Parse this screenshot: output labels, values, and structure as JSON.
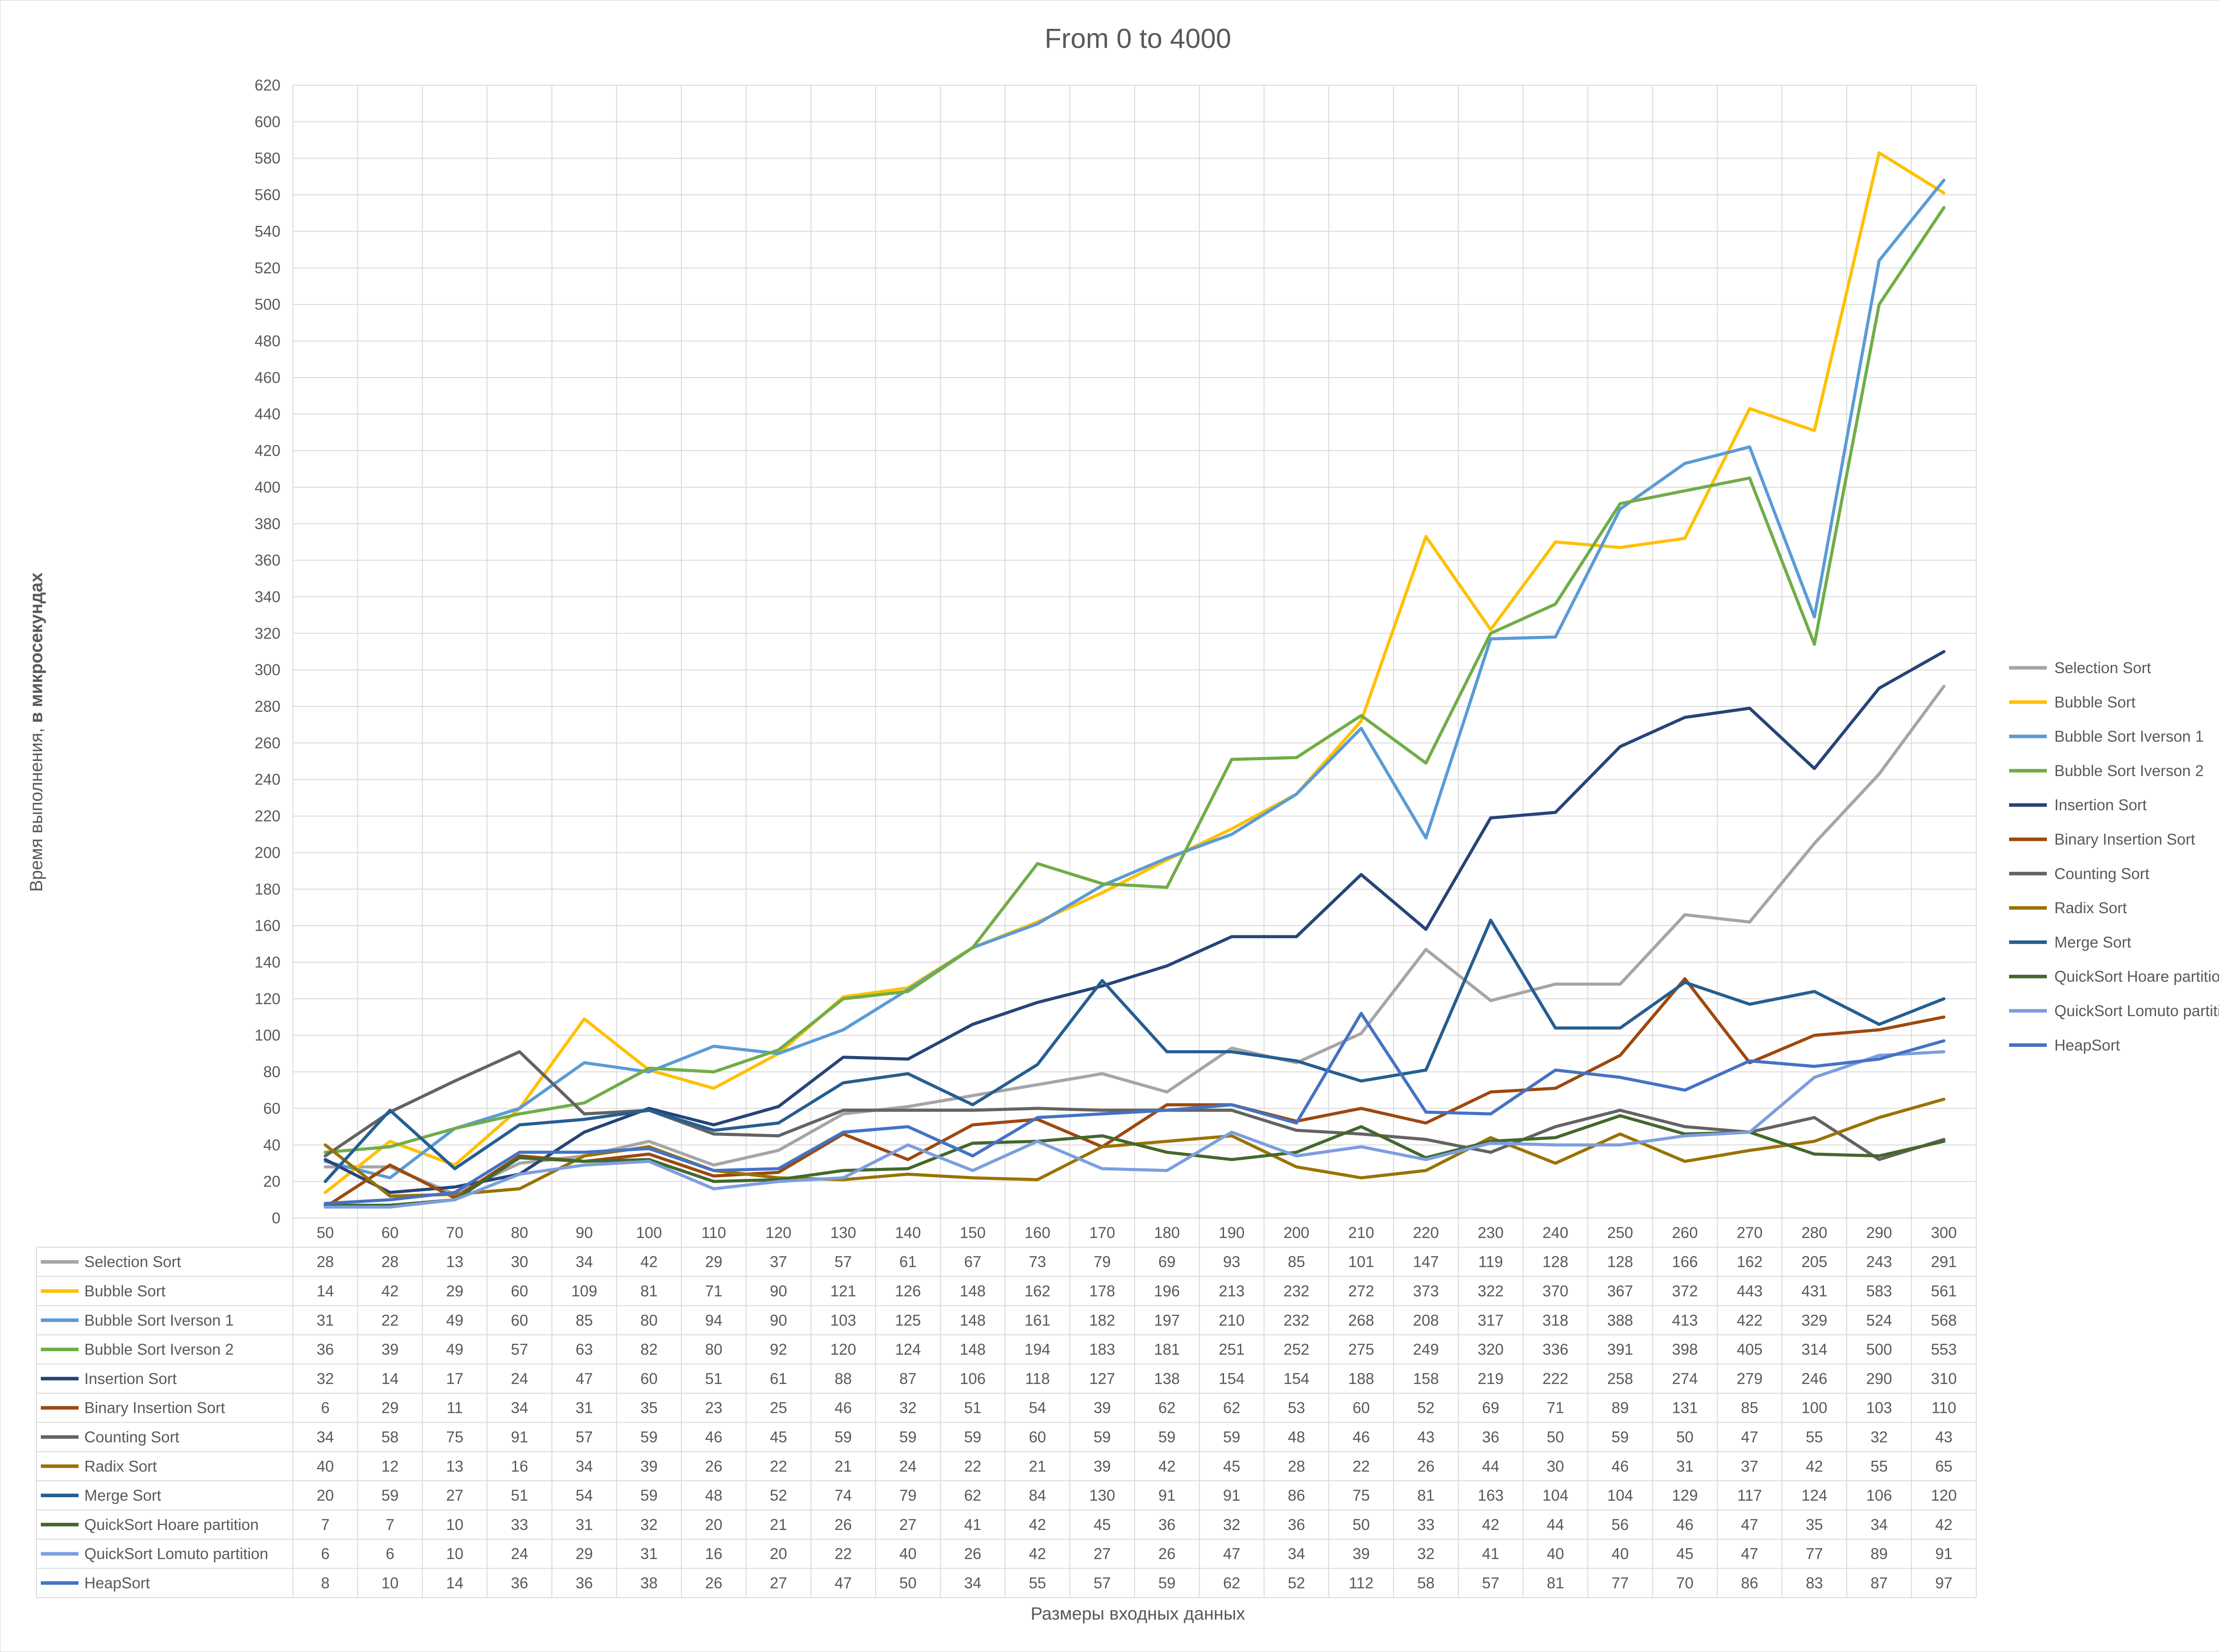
{
  "chart_data": {
    "type": "line",
    "title": "From 0 to 4000",
    "xlabel": "Размеры  входных данных",
    "ylabel_normal": "Время выполнения, ",
    "ylabel_bold": "в микросекундах",
    "ylim": [
      0,
      620
    ],
    "ytick_step": 20,
    "grid": "horizontal and vertical",
    "legend_position": "right",
    "data_table": true,
    "categories": [
      "50",
      "60",
      "70",
      "80",
      "90",
      "100",
      "110",
      "120",
      "130",
      "140",
      "150",
      "160",
      "170",
      "180",
      "190",
      "200",
      "210",
      "220",
      "230",
      "240",
      "250",
      "260",
      "270",
      "280",
      "290",
      "300"
    ],
    "series": [
      {
        "name": "Selection Sort",
        "color": "#a5a5a5",
        "values": [
          28,
          28,
          13,
          30,
          34,
          42,
          29,
          37,
          57,
          61,
          67,
          73,
          79,
          69,
          93,
          85,
          101,
          147,
          119,
          128,
          128,
          166,
          162,
          205,
          243,
          291
        ]
      },
      {
        "name": "Bubble Sort",
        "color": "#ffc000",
        "values": [
          14,
          42,
          29,
          60,
          109,
          81,
          71,
          90,
          121,
          126,
          148,
          162,
          178,
          196,
          213,
          232,
          272,
          373,
          322,
          370,
          367,
          372,
          443,
          431,
          583,
          561
        ]
      },
      {
        "name": "Bubble Sort Iverson 1",
        "color": "#5b9bd5",
        "values": [
          31,
          22,
          49,
          60,
          85,
          80,
          94,
          90,
          103,
          125,
          148,
          161,
          182,
          197,
          210,
          232,
          268,
          208,
          317,
          318,
          388,
          413,
          422,
          329,
          524,
          568
        ]
      },
      {
        "name": "Bubble Sort Iverson 2",
        "color": "#70ad47",
        "values": [
          36,
          39,
          49,
          57,
          63,
          82,
          80,
          92,
          120,
          124,
          148,
          194,
          183,
          181,
          251,
          252,
          275,
          249,
          320,
          336,
          391,
          398,
          405,
          314,
          500,
          553
        ]
      },
      {
        "name": "Insertion Sort",
        "color": "#264478",
        "values": [
          32,
          14,
          17,
          24,
          47,
          60,
          51,
          61,
          88,
          87,
          106,
          118,
          127,
          138,
          154,
          154,
          188,
          158,
          219,
          222,
          258,
          274,
          279,
          246,
          290,
          310
        ]
      },
      {
        "name": "Binary Insertion Sort",
        "color": "#9e480e",
        "values": [
          6,
          29,
          11,
          34,
          31,
          35,
          23,
          25,
          46,
          32,
          51,
          54,
          39,
          62,
          62,
          53,
          60,
          52,
          69,
          71,
          89,
          131,
          85,
          100,
          103,
          110
        ]
      },
      {
        "name": "Counting Sort",
        "color": "#636363",
        "values": [
          34,
          58,
          75,
          91,
          57,
          59,
          46,
          45,
          59,
          59,
          59,
          60,
          59,
          59,
          59,
          48,
          46,
          43,
          36,
          50,
          59,
          50,
          47,
          55,
          32,
          43
        ]
      },
      {
        "name": "Radix Sort",
        "color": "#997300",
        "values": [
          40,
          12,
          13,
          16,
          34,
          39,
          26,
          22,
          21,
          24,
          22,
          21,
          39,
          42,
          45,
          28,
          22,
          26,
          44,
          30,
          46,
          31,
          37,
          42,
          55,
          65
        ]
      },
      {
        "name": "Merge Sort",
        "color": "#255e91",
        "values": [
          20,
          59,
          27,
          51,
          54,
          59,
          48,
          52,
          74,
          79,
          62,
          84,
          130,
          91,
          91,
          86,
          75,
          81,
          163,
          104,
          104,
          129,
          117,
          124,
          106,
          120
        ]
      },
      {
        "name": "QuickSort Hoare partition",
        "color": "#43682b",
        "values": [
          7,
          7,
          10,
          33,
          31,
          32,
          20,
          21,
          26,
          27,
          41,
          42,
          45,
          36,
          32,
          36,
          50,
          33,
          42,
          44,
          56,
          46,
          47,
          35,
          34,
          42
        ]
      },
      {
        "name": "QuickSort Lomuto partition",
        "color": "#7c9ee0",
        "values": [
          6,
          6,
          10,
          24,
          29,
          31,
          16,
          20,
          22,
          40,
          26,
          42,
          27,
          26,
          47,
          34,
          39,
          32,
          41,
          40,
          40,
          45,
          47,
          77,
          89,
          91
        ]
      },
      {
        "name": "HeapSort",
        "color": "#4472c4",
        "values": [
          8,
          10,
          14,
          36,
          36,
          38,
          26,
          27,
          47,
          50,
          34,
          55,
          57,
          59,
          62,
          52,
          112,
          58,
          57,
          81,
          77,
          70,
          86,
          83,
          87,
          97
        ]
      }
    ]
  }
}
